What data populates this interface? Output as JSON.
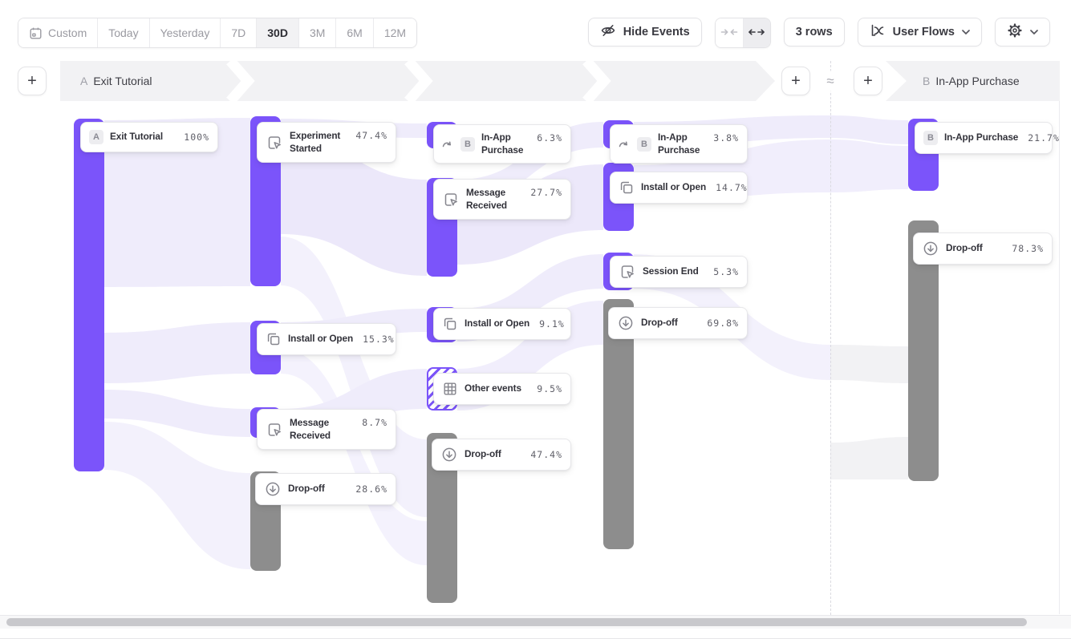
{
  "toolbar": {
    "date_ranges": [
      {
        "label": "Custom",
        "icon": "calendar",
        "selected": false
      },
      {
        "label": "Today",
        "selected": false
      },
      {
        "label": "Yesterday",
        "selected": false
      },
      {
        "label": "7D",
        "selected": false
      },
      {
        "label": "30D",
        "selected": true
      },
      {
        "label": "3M",
        "selected": false
      },
      {
        "label": "6M",
        "selected": false
      },
      {
        "label": "12M",
        "selected": false
      }
    ],
    "hide_events": "Hide Events",
    "rows": "3 rows",
    "view_selector": "User Flows"
  },
  "header": {
    "flow_a_badge": "A",
    "flow_a_label": "Exit Tutorial",
    "flow_b_badge": "B",
    "flow_b_label": "In-App Purchase",
    "approx": "≈"
  },
  "chart_data": {
    "type": "sankey",
    "title": "User Flows from A: Exit Tutorial to B: In-App Purchase",
    "date_range": "30D",
    "rows_setting": "3 rows",
    "colors": {
      "event_bar": "#7B54FA",
      "dropoff_bar": "#8D8D8D",
      "ribbon": "#EFECFB"
    },
    "nodes": [
      {
        "id": "n1",
        "col": 1,
        "label": "Exit Tutorial",
        "pct": "100%",
        "badge": "A",
        "icon": null,
        "kind": "event"
      },
      {
        "id": "n2",
        "col": 2,
        "label": "Experiment Started",
        "pct": "47.4%",
        "badge": null,
        "icon": "cursor-event",
        "kind": "event"
      },
      {
        "id": "n3",
        "col": 2,
        "label": "Install or Open",
        "pct": "15.3%",
        "badge": null,
        "icon": "copy",
        "kind": "event"
      },
      {
        "id": "n4",
        "col": 2,
        "label": "Message Received",
        "pct": "8.7%",
        "badge": null,
        "icon": "cursor-event",
        "kind": "event"
      },
      {
        "id": "n5",
        "col": 2,
        "label": "Drop-off",
        "pct": "28.6%",
        "badge": null,
        "icon": "dropoff",
        "kind": "dropoff"
      },
      {
        "id": "n6",
        "col": 3,
        "label": "In-App Purchase",
        "pct": "6.3%",
        "badge": "B",
        "icon": "jump",
        "kind": "event"
      },
      {
        "id": "n7",
        "col": 3,
        "label": "Message Received",
        "pct": "27.7%",
        "badge": null,
        "icon": "cursor-event",
        "kind": "event"
      },
      {
        "id": "n8",
        "col": 3,
        "label": "Install or Open",
        "pct": "9.1%",
        "badge": null,
        "icon": "copy",
        "kind": "event"
      },
      {
        "id": "n9",
        "col": 3,
        "label": "Other events",
        "pct": "9.5%",
        "badge": null,
        "icon": "grid",
        "kind": "other"
      },
      {
        "id": "n10",
        "col": 3,
        "label": "Drop-off",
        "pct": "47.4%",
        "badge": null,
        "icon": "dropoff",
        "kind": "dropoff"
      },
      {
        "id": "n11",
        "col": 4,
        "label": "In-App Purchase",
        "pct": "3.8%",
        "badge": "B",
        "icon": "jump",
        "kind": "event"
      },
      {
        "id": "n12",
        "col": 4,
        "label": "Install or Open",
        "pct": "14.7%",
        "badge": null,
        "icon": "copy",
        "kind": "event"
      },
      {
        "id": "n13",
        "col": 4,
        "label": "Session End",
        "pct": "5.3%",
        "badge": null,
        "icon": "cursor-event",
        "kind": "event"
      },
      {
        "id": "n14",
        "col": 4,
        "label": "Drop-off",
        "pct": "69.8%",
        "badge": null,
        "icon": "dropoff",
        "kind": "dropoff"
      },
      {
        "id": "n15",
        "col": 5,
        "label": "In-App Purchase",
        "pct": "21.7%",
        "badge": "B",
        "icon": null,
        "kind": "event"
      },
      {
        "id": "n16",
        "col": 5,
        "label": "Drop-off",
        "pct": "78.3%",
        "badge": null,
        "icon": "dropoff",
        "kind": "dropoff"
      }
    ]
  }
}
